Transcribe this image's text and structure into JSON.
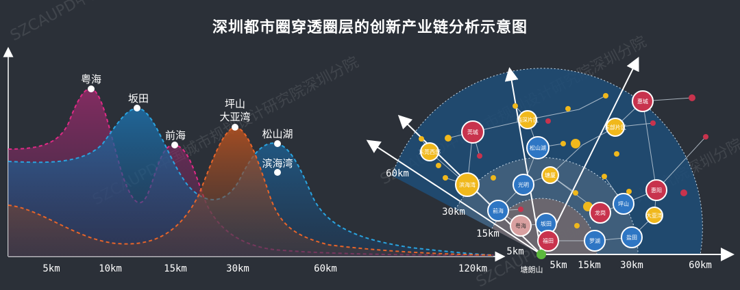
{
  "title": "深圳都市圈穿透圈层的创新产业链分析示意图",
  "watermark": "SZCAUPD中国城市规划设计研究院深圳分院",
  "left": {
    "peaks": [
      {
        "label": "粤海"
      },
      {
        "label": "坂田"
      },
      {
        "label": "前海"
      },
      {
        "label": "坪山"
      },
      {
        "label": "大亚湾"
      },
      {
        "label": "松山湖"
      },
      {
        "label": "滨海湾"
      }
    ],
    "distance_ticks": [
      "5km",
      "10km",
      "15km",
      "30km",
      "60km",
      "120km"
    ]
  },
  "right": {
    "ring_labels_axis": [
      "60km",
      "30km",
      "15km",
      "5km"
    ],
    "ring_labels_bottom": [
      "5km",
      "15km",
      "30km",
      "60km"
    ],
    "origin_label": "塘朗山",
    "nodes": [
      {
        "label": "粤海"
      },
      {
        "label": "坂田"
      },
      {
        "label": "福田"
      },
      {
        "label": "罗湖"
      },
      {
        "label": "盐田"
      },
      {
        "label": "前海"
      },
      {
        "label": "光明"
      },
      {
        "label": "龙岗"
      },
      {
        "label": "坪山"
      },
      {
        "label": "松山湖"
      },
      {
        "label": "滨海湾"
      },
      {
        "label": "莞城"
      },
      {
        "label": "惠阳"
      },
      {
        "label": "惠城"
      },
      {
        "label": "塘厦"
      },
      {
        "label": "大亚湾"
      },
      {
        "label": "东莞西部"
      },
      {
        "label": "临深片区"
      },
      {
        "label": "东部片区"
      }
    ]
  },
  "colors": {
    "background": "#2b3038",
    "blue_node": "#2e76c4",
    "red_node": "#c8334d",
    "yellow_node": "#f0b81c",
    "magenta_curve": "#e02a86",
    "cyan_curve": "#2aa4e0",
    "orange_curve": "#e8652a",
    "ring_outer": "#1f4e78",
    "ring_mid": "#4a6580",
    "ring_inner": "#7a6a6a"
  }
}
